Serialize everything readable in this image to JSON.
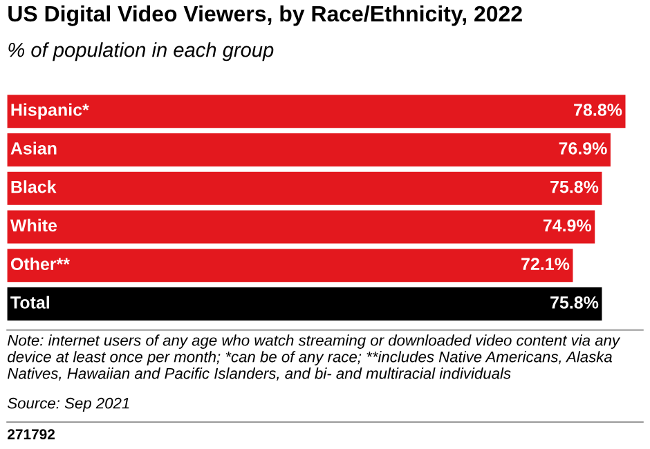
{
  "chart_data": {
    "type": "bar",
    "orientation": "horizontal",
    "title": "US Digital Video Viewers, by Race/Ethnicity, 2022",
    "subtitle": "% of population in each group",
    "categories": [
      "Hispanic*",
      "Asian",
      "Black",
      "White",
      "Other**",
      "Total"
    ],
    "values": [
      78.8,
      76.9,
      75.8,
      74.9,
      72.1,
      75.8
    ],
    "colors": [
      "#e3181e",
      "#e3181e",
      "#e3181e",
      "#e3181e",
      "#e3181e",
      "#000000"
    ],
    "value_labels": [
      "78.8%",
      "76.9%",
      "75.8%",
      "74.9%",
      "72.1%",
      "75.8%"
    ],
    "annotations": [
      "Note: internet users of any age who watch streaming or downloaded video content via any device at least once per month; *can be of any race; **includes Native Americans, Alaska Natives, Hawaiian and Pacific Islanders, and bi- and multiracial individuals",
      "Source: Sep 2021",
      "271792"
    ]
  }
}
